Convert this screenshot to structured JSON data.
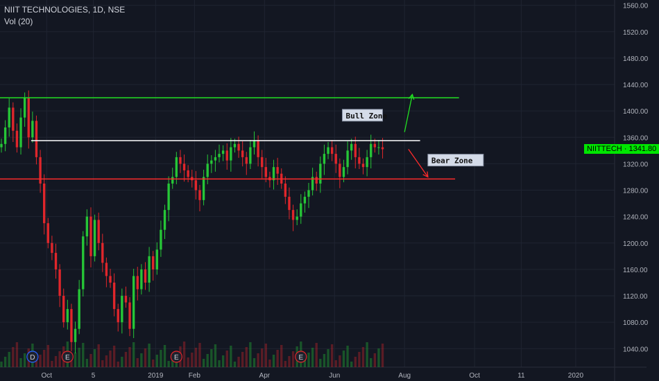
{
  "header": {
    "symbol_title": "NIIT TECHNOLOGIES, 1D, NSE",
    "volume_label": "Vol (20)"
  },
  "price_tag": {
    "text": "NIITTECH · 1341.80",
    "color": "#00e600"
  },
  "colors": {
    "background": "#131722",
    "grid": "#1f2431",
    "up": "#26c637",
    "down": "#e0262b",
    "axis_text": "#b2b5be",
    "resistance": "#ffffff",
    "target": "#22e022",
    "support": "#ff2b2b"
  },
  "chart_data": {
    "type": "candlestick",
    "title": "NIIT TECHNOLOGIES, 1D, NSE",
    "y_axis": {
      "ticks": [
        1560,
        1520,
        1480,
        1440,
        1400,
        1360,
        1320,
        1280,
        1240,
        1200,
        1160,
        1120,
        1080,
        1040
      ],
      "tick_labels": [
        "1560.00",
        "1520.00",
        "1480.00",
        "1440.00",
        "1400.00",
        "1360.00",
        "1320.00",
        "1280.00",
        "1240.00",
        "1200.00",
        "1160.00",
        "1120.00",
        "1080.00",
        "1040.00"
      ],
      "range": [
        1012,
        1568
      ],
      "position": "right"
    },
    "x_axis": {
      "tick_labels": [
        "Oct",
        "5",
        "2019",
        "Feb",
        "Apr",
        "Jun",
        "Aug",
        "Oct",
        "11",
        "2020"
      ],
      "tick_index": [
        12,
        24,
        40,
        50,
        68,
        86,
        104,
        122,
        134,
        148
      ],
      "range_index": [
        0,
        158
      ]
    },
    "last_price": 1341.8,
    "horizontal_levels": [
      {
        "price": 1420,
        "color": "#22e022",
        "from_index": 0,
        "to_index": 118
      },
      {
        "price": 1355,
        "color": "#ffffff",
        "from_index": 8,
        "to_index": 108
      },
      {
        "price": 1297,
        "color": "#ff2b2b",
        "from_index": 0,
        "to_index": 117
      }
    ],
    "annotations": [
      {
        "text": "Bull Zone",
        "price": 1393,
        "index": 88
      },
      {
        "text": "Bear Zone",
        "price": 1325,
        "index": 110
      }
    ],
    "arrows": [
      {
        "from": {
          "index": 104,
          "price": 1368
        },
        "to": {
          "index": 106,
          "price": 1425
        },
        "color": "#22e022"
      },
      {
        "from": {
          "index": 105,
          "price": 1342
        },
        "to": {
          "index": 110,
          "price": 1300
        },
        "color": "#ff2b2b"
      }
    ],
    "event_markers": [
      {
        "label": "D",
        "index": 8,
        "color": "#2962ff"
      },
      {
        "label": "E",
        "index": 17,
        "color": "#e0262b"
      },
      {
        "label": "E",
        "index": 45,
        "color": "#e0262b"
      },
      {
        "label": "E",
        "index": 77,
        "color": "#e0262b"
      }
    ],
    "candles_close": [
      1350,
      1375,
      1405,
      1370,
      1345,
      1390,
      1420,
      1360,
      1385,
      1330,
      1290,
      1230,
      1200,
      1185,
      1160,
      1120,
      1080,
      1100,
      1050,
      1070,
      1130,
      1210,
      1240,
      1180,
      1235,
      1200,
      1170,
      1150,
      1140,
      1100,
      1080,
      1120,
      1110,
      1070,
      1150,
      1130,
      1160,
      1140,
      1180,
      1160,
      1190,
      1220,
      1250,
      1290,
      1300,
      1330,
      1320,
      1310,
      1300,
      1295,
      1280,
      1265,
      1300,
      1320,
      1325,
      1330,
      1335,
      1340,
      1325,
      1345,
      1350,
      1340,
      1330,
      1320,
      1345,
      1355,
      1330,
      1315,
      1300,
      1295,
      1315,
      1305,
      1290,
      1270,
      1250,
      1235,
      1240,
      1260,
      1270,
      1280,
      1300,
      1290,
      1320,
      1335,
      1345,
      1335,
      1320,
      1300,
      1315,
      1340,
      1350,
      1330,
      1320,
      1315,
      1330,
      1350,
      1345,
      1345,
      1342
    ]
  }
}
